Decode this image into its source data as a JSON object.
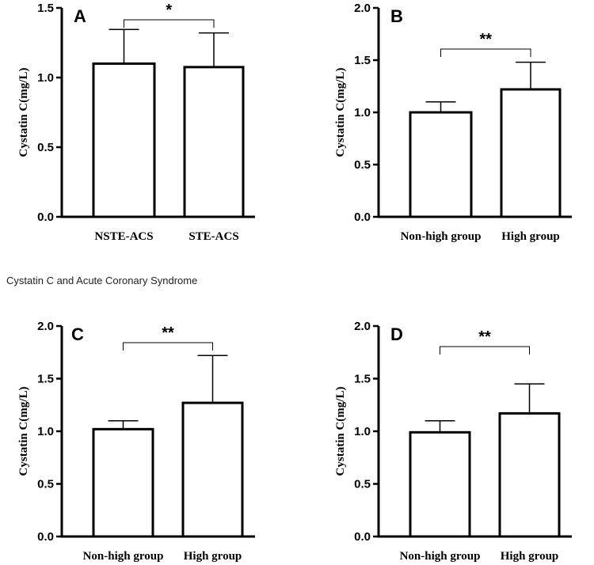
{
  "caption": "Cystatin C and Acute Coronary Syndrome",
  "chart_data": [
    {
      "type": "bar",
      "panel_label": "A",
      "ylabel": "Cystatin C(mg/L)",
      "ylim": [
        0,
        1.5
      ],
      "yticks": [
        "0.0",
        "0.5",
        "1.0",
        "1.5"
      ],
      "categories": [
        "NSTE-ACS",
        "STE-ACS"
      ],
      "values": [
        1.1,
        1.075
      ],
      "errors": [
        0.245,
        0.245
      ],
      "significance": "*"
    },
    {
      "type": "bar",
      "panel_label": "B",
      "ylabel": "Cystatin C(mg/L)",
      "ylim": [
        0,
        2.0
      ],
      "yticks": [
        "0.0",
        "0.5",
        "1.0",
        "1.5",
        "2.0"
      ],
      "categories": [
        "Non-high group",
        "High group"
      ],
      "values": [
        1.0,
        1.22
      ],
      "errors": [
        0.1,
        0.26
      ],
      "significance": "**"
    },
    {
      "type": "bar",
      "panel_label": "C",
      "ylabel": "Cystatin C(mg/L)",
      "ylim": [
        0,
        2.0
      ],
      "yticks": [
        "0.0",
        "0.5",
        "1.0",
        "1.5",
        "2.0"
      ],
      "categories": [
        "Non-high group",
        "High group"
      ],
      "values": [
        1.02,
        1.27
      ],
      "errors": [
        0.08,
        0.45
      ],
      "significance": "**"
    },
    {
      "type": "bar",
      "panel_label": "D",
      "ylabel": "Cystatin C(mg/L)",
      "ylim": [
        0,
        2.0
      ],
      "yticks": [
        "0.0",
        "0.5",
        "1.0",
        "1.5",
        "2.0"
      ],
      "categories": [
        "Non-high group",
        "High group"
      ],
      "values": [
        0.99,
        1.17
      ],
      "errors": [
        0.11,
        0.28
      ],
      "significance": "**"
    }
  ]
}
